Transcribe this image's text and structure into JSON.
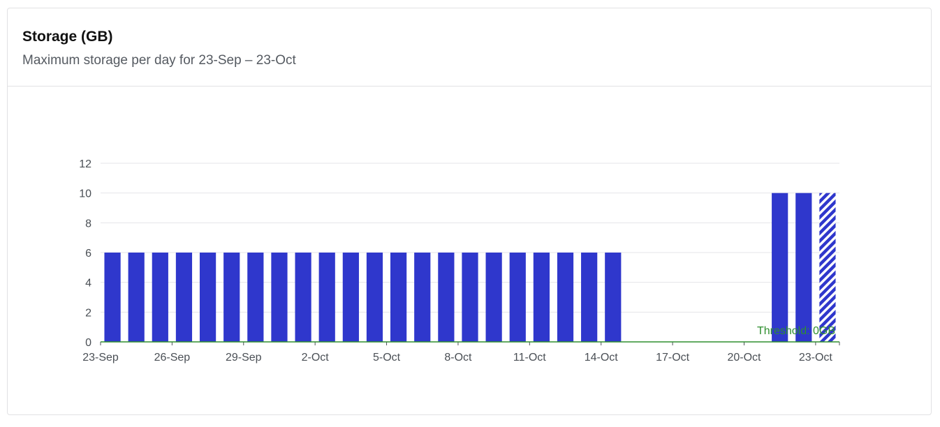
{
  "card": {
    "title": "Storage (GB)",
    "subtitle": "Maximum storage per day for 23-Sep – 23-Oct"
  },
  "chart_data": {
    "type": "bar",
    "categories": [
      "23-Sep",
      "24-Sep",
      "25-Sep",
      "26-Sep",
      "27-Sep",
      "28-Sep",
      "29-Sep",
      "30-Sep",
      "1-Oct",
      "2-Oct",
      "3-Oct",
      "4-Oct",
      "5-Oct",
      "6-Oct",
      "7-Oct",
      "8-Oct",
      "9-Oct",
      "10-Oct",
      "11-Oct",
      "12-Oct",
      "13-Oct",
      "14-Oct",
      "15-Oct",
      "16-Oct",
      "17-Oct",
      "18-Oct",
      "19-Oct",
      "20-Oct",
      "21-Oct",
      "22-Oct",
      "23-Oct"
    ],
    "values": [
      6,
      6,
      6,
      6,
      6,
      6,
      6,
      6,
      6,
      6,
      6,
      6,
      6,
      6,
      6,
      6,
      6,
      6,
      6,
      6,
      6,
      6,
      0,
      0,
      0,
      0,
      0,
      0,
      10,
      10,
      10
    ],
    "partial_last": true,
    "x_tick_labels": [
      "23-Sep",
      "26-Sep",
      "29-Sep",
      "2-Oct",
      "5-Oct",
      "8-Oct",
      "11-Oct",
      "14-Oct",
      "17-Oct",
      "20-Oct",
      "23-Oct"
    ],
    "y_ticks": [
      0,
      2,
      4,
      6,
      8,
      10,
      12
    ],
    "ylim": [
      0,
      12
    ],
    "grid": true,
    "threshold": {
      "value": 0,
      "label": "Threshold: 0GB"
    },
    "colors": {
      "bar": "#2f37cc",
      "threshold": "#2f8f2f",
      "grid": "#e4e5e8",
      "axis": "#4a4f55"
    }
  }
}
